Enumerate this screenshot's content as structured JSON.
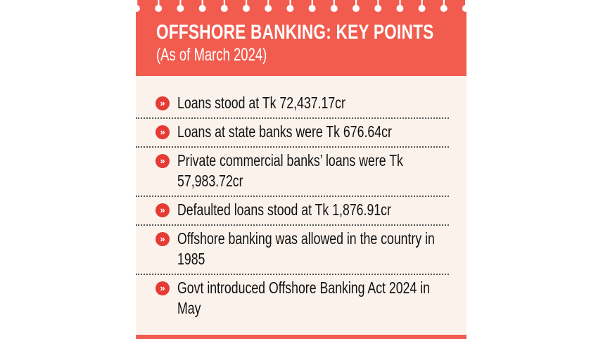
{
  "header": {
    "title": "OFFSHORE BANKING: KEY POINTS",
    "subtitle": "(As of March 2024)"
  },
  "items": [
    {
      "text": "Loans stood at Tk 72,437.17cr"
    },
    {
      "text": "Loans at state banks were Tk 676.64cr"
    },
    {
      "text": "Private commercial banks’ loans were Tk 57,983.72cr"
    },
    {
      "text": "Defaulted loans stood at Tk 1,876.91cr"
    },
    {
      "text": "Offshore banking was allowed in the country in 1985"
    },
    {
      "text": "Govt introduced Offshore Banking Act 2024 in May"
    }
  ],
  "colors": {
    "accent": "#f15c4f",
    "bullet": "#e53b35",
    "background": "#fcf2ec"
  },
  "bullet_icon": "double-chevron-right-icon"
}
